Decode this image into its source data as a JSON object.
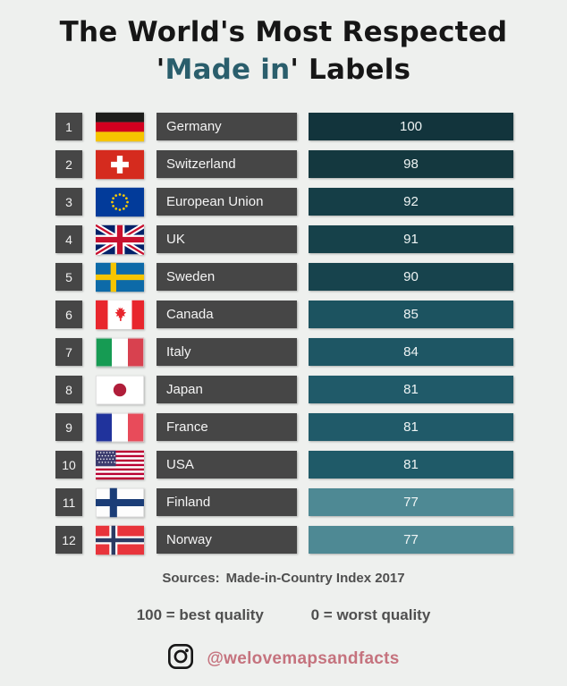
{
  "title": {
    "line1": "The World's Most Respected",
    "line2_prefix": "'",
    "line2_highlight": "Made in",
    "line2_suffix": "' Labels"
  },
  "rows": [
    {
      "rank": "1",
      "country": "Germany",
      "score": "100",
      "flag": "germany",
      "bar_color": "#12343c"
    },
    {
      "rank": "2",
      "country": "Switzerland",
      "score": "98",
      "flag": "switzerland",
      "bar_color": "#14383f"
    },
    {
      "rank": "3",
      "country": "European Union",
      "score": "92",
      "flag": "european-union",
      "bar_color": "#153e47"
    },
    {
      "rank": "4",
      "country": "UK",
      "score": "91",
      "flag": "uk",
      "bar_color": "#16414a"
    },
    {
      "rank": "5",
      "country": "Sweden",
      "score": "90",
      "flag": "sweden",
      "bar_color": "#17434d"
    },
    {
      "rank": "6",
      "country": "Canada",
      "score": "85",
      "flag": "canada",
      "bar_color": "#1c5360"
    },
    {
      "rank": "7",
      "country": "Italy",
      "score": "84",
      "flag": "italy",
      "bar_color": "#1e5664"
    },
    {
      "rank": "8",
      "country": "Japan",
      "score": "81",
      "flag": "japan",
      "bar_color": "#205a69"
    },
    {
      "rank": "9",
      "country": "France",
      "score": "81",
      "flag": "france",
      "bar_color": "#205a69"
    },
    {
      "rank": "10",
      "country": "USA",
      "score": "81",
      "flag": "usa",
      "bar_color": "#1f5a68"
    },
    {
      "rank": "11",
      "country": "Finland",
      "score": "77",
      "flag": "finland",
      "bar_color": "#4e8994"
    },
    {
      "rank": "12",
      "country": "Norway",
      "score": "77",
      "flag": "norway",
      "bar_color": "#4e8994"
    }
  ],
  "chart_data": {
    "type": "bar",
    "title": "The World's Most Respected 'Made in' Labels",
    "categories": [
      "Germany",
      "Switzerland",
      "European Union",
      "UK",
      "Sweden",
      "Canada",
      "Italy",
      "Japan",
      "France",
      "USA",
      "Finland",
      "Norway"
    ],
    "values": [
      100,
      98,
      92,
      91,
      90,
      85,
      84,
      81,
      81,
      81,
      77,
      77
    ],
    "ranks": [
      1,
      2,
      3,
      4,
      5,
      6,
      7,
      8,
      9,
      10,
      11,
      12
    ],
    "xlim": [
      0,
      100
    ],
    "legend_position": "none",
    "grid": false,
    "source": "Made-in-Country Index 2017",
    "scale_note": "100 = best quality, 0 = worst quality"
  },
  "footer": {
    "sources_label": "Sources:",
    "sources_value": "Made-in-Country Index 2017",
    "legend_best": "100 = best quality",
    "legend_worst": "0 = worst quality",
    "instagram_icon": "instagram-icon",
    "handle": "@welovemapsandfacts"
  },
  "colors": {
    "background": "#eef0ee",
    "box_gray": "#464646",
    "title_text": "#161616",
    "accent_teal": "#2a5e6c",
    "footer_text": "#4f4f4f",
    "handle_rose": "#c5737e",
    "bar_darkest": "#12343c",
    "bar_lightest": "#4e8994"
  }
}
